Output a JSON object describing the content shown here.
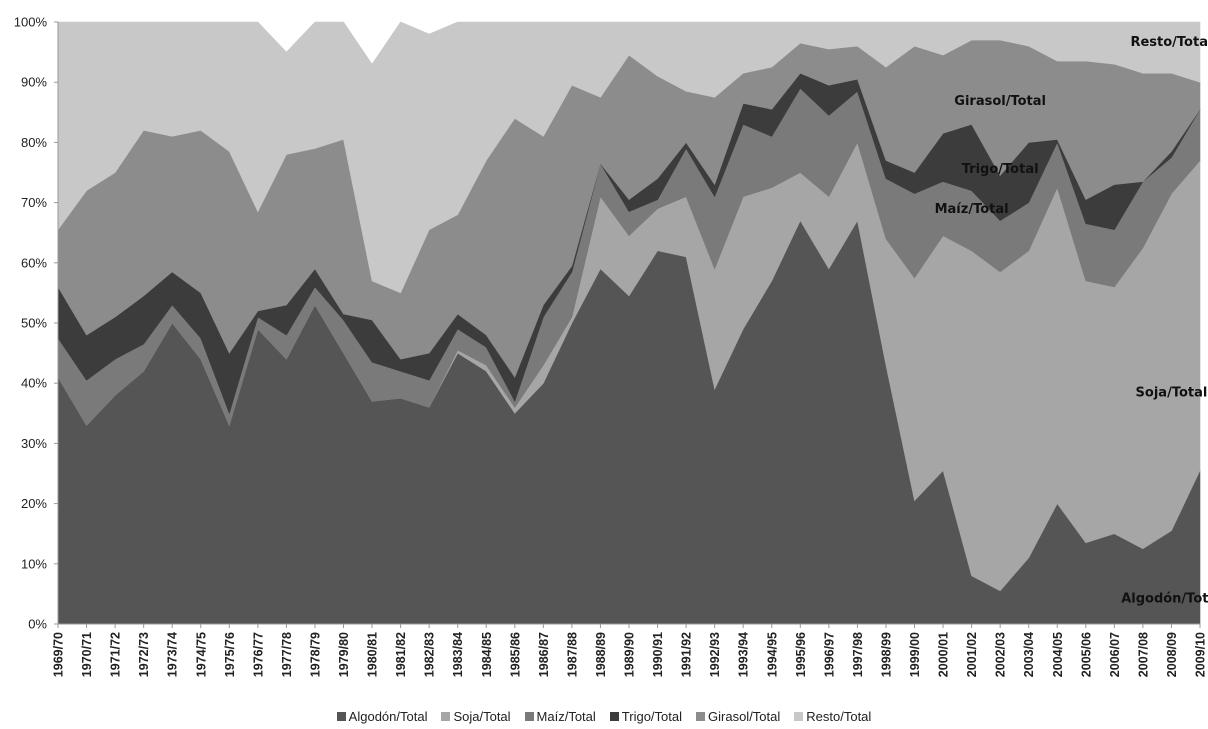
{
  "chart_data": {
    "type": "area",
    "stacked": true,
    "ylim": [
      0,
      100
    ],
    "y_ticks": [
      "0%",
      "10%",
      "20%",
      "30%",
      "40%",
      "50%",
      "60%",
      "70%",
      "80%",
      "90%",
      "100%"
    ],
    "grid": false,
    "legend_position": "bottom",
    "categories": [
      "1969/70",
      "1970/71",
      "1971/72",
      "1972/73",
      "1973/74",
      "1974/75",
      "1975/76",
      "1976/77",
      "1977/78",
      "1978/79",
      "1979/80",
      "1980/81",
      "1981/82",
      "1982/83",
      "1983/84",
      "1984/85",
      "1985/86",
      "1986/87",
      "1987/88",
      "1988/89",
      "1989/90",
      "1990/91",
      "1991/92",
      "1992/93",
      "1993/94",
      "1994/95",
      "1995/96",
      "1996/97",
      "1997/98",
      "1998/99",
      "1999/00",
      "2000/01",
      "2001/02",
      "2002/03",
      "2003/04",
      "2004/05",
      "2005/06",
      "2006/07",
      "2007/08",
      "2008/09",
      "2009/10"
    ],
    "series": [
      {
        "name": "Algodón/Total",
        "color": "#555555",
        "values": [
          41,
          33,
          38,
          42,
          50,
          44,
          33,
          49,
          44,
          53,
          45,
          37,
          37.5,
          36,
          45,
          42,
          35,
          40,
          50,
          59,
          54.5,
          62,
          61,
          39,
          49,
          57,
          67,
          59,
          67,
          43,
          20.5,
          25.5,
          8,
          5.5,
          11,
          20,
          13.5,
          15,
          12.5,
          15.5,
          25.5
        ]
      },
      {
        "name": "Soja/Total",
        "color": "#a6a6a6",
        "values": [
          0,
          0,
          0,
          0,
          0,
          0,
          0,
          0,
          0,
          0,
          0,
          0,
          0,
          0,
          0.5,
          1,
          1,
          3,
          1,
          12,
          10,
          7,
          10,
          20,
          22,
          15.5,
          8,
          12,
          13,
          21,
          37,
          39,
          54,
          53,
          51,
          52.5,
          43.5,
          41,
          50,
          56,
          51.5
        ]
      },
      {
        "name": "Maíz/Total",
        "color": "#7a7a7a",
        "values": [
          6.5,
          7.5,
          6,
          4.5,
          3,
          3.5,
          2,
          2,
          4,
          3,
          5.5,
          6.5,
          4.5,
          4.5,
          3.5,
          3,
          1,
          8,
          7.5,
          5.5,
          4,
          1.5,
          8,
          12,
          12,
          8.5,
          14,
          13.5,
          8.5,
          10,
          14,
          9,
          10,
          8.5,
          8,
          7.5,
          9.5,
          9.5,
          11,
          6,
          8.5
        ]
      },
      {
        "name": "Trigo/Total",
        "color": "#3c3c3c",
        "values": [
          8.5,
          7.5,
          7,
          8,
          5.5,
          7.5,
          10,
          1,
          5,
          3,
          1,
          7,
          2,
          4.5,
          2.5,
          2,
          4,
          2,
          1,
          0,
          2,
          3.5,
          1,
          2,
          3.5,
          4.5,
          2.5,
          5,
          2,
          3,
          3.5,
          8,
          11,
          7.5,
          10,
          0.5,
          4,
          7.5,
          0,
          1,
          0
        ]
      },
      {
        "name": "Girasol/Total",
        "color": "#8c8c8c",
        "values": [
          9.5,
          24,
          24,
          27.5,
          22.5,
          27,
          33.5,
          16.5,
          25,
          20,
          29,
          6.5,
          11,
          20.5,
          16.5,
          29,
          43,
          28,
          30,
          11,
          24,
          17,
          8.5,
          14.5,
          5,
          7,
          5,
          6,
          5.5,
          15.5,
          21,
          13,
          14,
          22.5,
          16,
          13,
          23,
          20,
          18,
          13,
          4.5
        ]
      },
      {
        "name": "Resto/Total",
        "color": "#c8c8c8",
        "values": [
          34.5,
          28,
          25,
          18,
          19,
          18,
          21.5,
          31.5,
          17,
          21,
          19.5,
          36,
          45,
          32.5,
          32,
          23,
          16,
          19,
          10.5,
          12.5,
          5.5,
          9,
          11.5,
          12.5,
          8.5,
          7.5,
          3.5,
          4.5,
          4,
          7.5,
          4,
          5.5,
          3,
          3,
          4,
          6.5,
          6.5,
          7,
          8.5,
          8.5,
          10
        ]
      }
    ],
    "annotations": [
      {
        "text": "Resto/Total",
        "category": "2008/09",
        "y": 96.8
      },
      {
        "text": "Girasol/Total",
        "category": "2002/03",
        "y": 87
      },
      {
        "text": "Trigo/Total",
        "category": "2002/03",
        "y": 75.7
      },
      {
        "text": "Maíz/Total",
        "category": "2001/02",
        "y": 69
      },
      {
        "text": "Soja/Total",
        "category": "2008/09",
        "y": 38.5
      },
      {
        "text": "Algodón/Total",
        "category": "2008/09",
        "y": 4.3
      }
    ]
  }
}
